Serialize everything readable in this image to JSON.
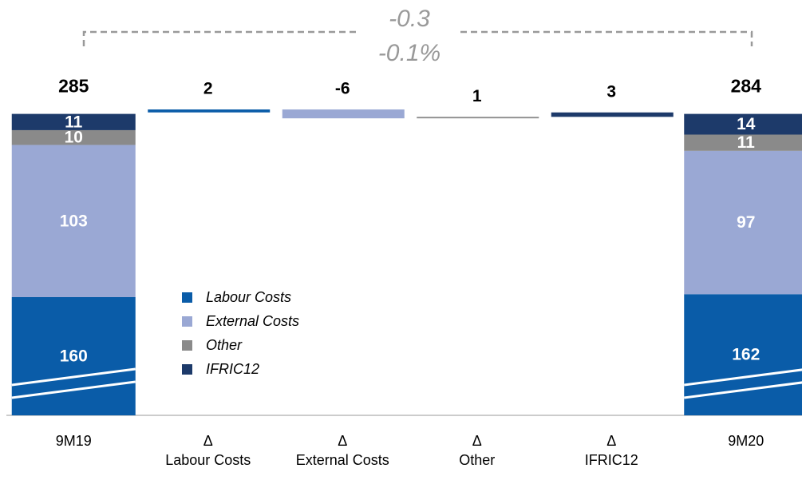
{
  "chart_data": {
    "type": "waterfall",
    "categories": [
      "9M19",
      "Δ\nLabour Costs",
      "Δ\nExternal Costs",
      "Δ\nOther",
      "Δ\nIFRIC12",
      "9M20"
    ],
    "series": [
      {
        "name": "Labour Costs",
        "color": "#0a5ca8",
        "values": [
          160,
          2,
          null,
          null,
          null,
          162
        ]
      },
      {
        "name": "External Costs",
        "color": "#9aa8d4",
        "values": [
          103,
          null,
          -6,
          null,
          null,
          97
        ]
      },
      {
        "name": "Other",
        "color": "#8a8a8a",
        "values": [
          10,
          null,
          null,
          1,
          null,
          11
        ]
      },
      {
        "name": "IFRIC12",
        "color": "#1d3a6a",
        "values": [
          11,
          null,
          null,
          null,
          3,
          14
        ]
      }
    ],
    "totals": [
      285,
      null,
      null,
      null,
      null,
      284
    ],
    "annotations": [
      "-0.3",
      "-0.1%"
    ],
    "ylim": [
      80,
      290
    ]
  }
}
